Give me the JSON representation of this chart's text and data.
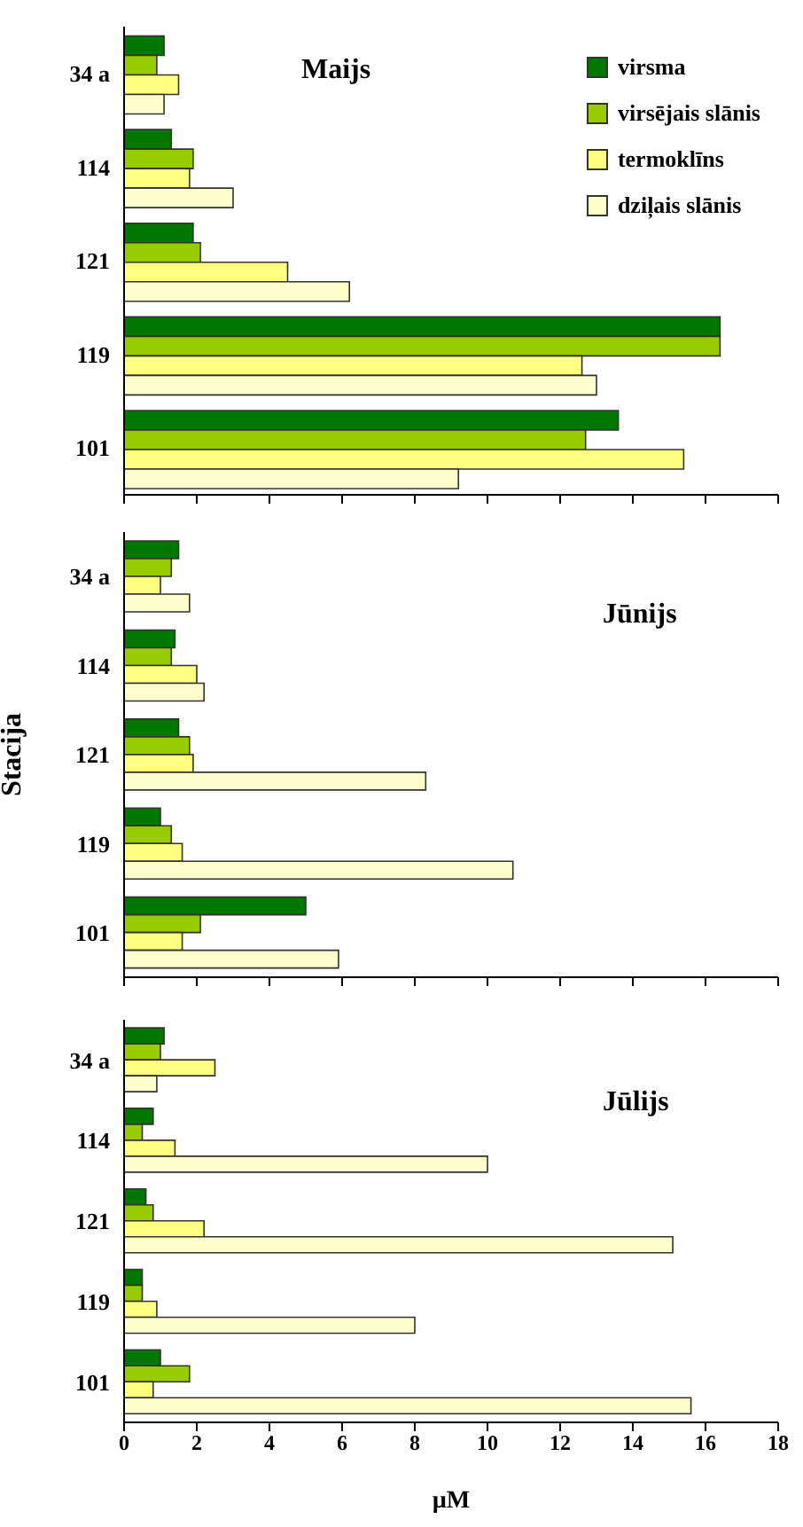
{
  "chart_data": [
    {
      "type": "bar",
      "orientation": "horizontal",
      "title": "Maijs",
      "legend": "top right",
      "tick_labels": "y",
      "categories": [
        "34 a",
        "114",
        "121",
        "119",
        "101"
      ],
      "xlim": [
        0,
        18
      ],
      "xticks": [
        0,
        2,
        4,
        6,
        8,
        10,
        12,
        14,
        16,
        18
      ],
      "series": [
        {
          "name": "virsma",
          "color": "#007800",
          "values": [
            1.1,
            1.3,
            1.9,
            16.4,
            13.6
          ]
        },
        {
          "name": "virsējais slānis",
          "color": "#99cc00",
          "values": [
            0.9,
            1.9,
            2.1,
            16.4,
            12.7
          ]
        },
        {
          "name": "termoklīns",
          "color": "#ffff80",
          "values": [
            1.5,
            1.8,
            4.5,
            12.6,
            15.4
          ]
        },
        {
          "name": "dziļais slānis",
          "color": "#ffffcc",
          "values": [
            1.1,
            3.0,
            6.2,
            13.0,
            9.2
          ]
        }
      ]
    },
    {
      "type": "bar",
      "orientation": "horizontal",
      "title": "Jūnijs",
      "ylabel": "Stacija",
      "tick_labels": "y",
      "categories": [
        "34 a",
        "114",
        "121",
        "119",
        "101"
      ],
      "xlim": [
        0,
        18
      ],
      "xticks": [
        0,
        2,
        4,
        6,
        8,
        10,
        12,
        14,
        16,
        18
      ],
      "series": [
        {
          "color": "#007800",
          "values": [
            1.5,
            1.4,
            1.5,
            1.0,
            5.0
          ]
        },
        {
          "color": "#99cc00",
          "values": [
            1.3,
            1.3,
            1.8,
            1.3,
            2.1
          ]
        },
        {
          "color": "#ffff80",
          "values": [
            1.0,
            2.0,
            1.9,
            1.6,
            1.6
          ]
        },
        {
          "color": "#ffffcc",
          "values": [
            1.8,
            2.2,
            8.3,
            10.7,
            5.9
          ]
        }
      ]
    },
    {
      "type": "bar",
      "orientation": "horizontal",
      "title": "Jūlijs",
      "xlabel": "µM",
      "categories": [
        "34 a",
        "114",
        "121",
        "119",
        "101"
      ],
      "xlim": [
        0,
        18
      ],
      "xticks": [
        0,
        2,
        4,
        6,
        8,
        10,
        12,
        14,
        16,
        18
      ],
      "series": [
        {
          "color": "#007800",
          "values": [
            1.1,
            0.8,
            0.6,
            0.5,
            1.0
          ]
        },
        {
          "color": "#99cc00",
          "values": [
            1.0,
            0.5,
            0.8,
            0.5,
            1.8
          ]
        },
        {
          "color": "#ffff80",
          "values": [
            2.5,
            1.4,
            2.2,
            0.9,
            0.8
          ]
        },
        {
          "color": "#ffffcc",
          "values": [
            0.9,
            10.0,
            15.1,
            8.0,
            15.6
          ]
        }
      ]
    }
  ]
}
